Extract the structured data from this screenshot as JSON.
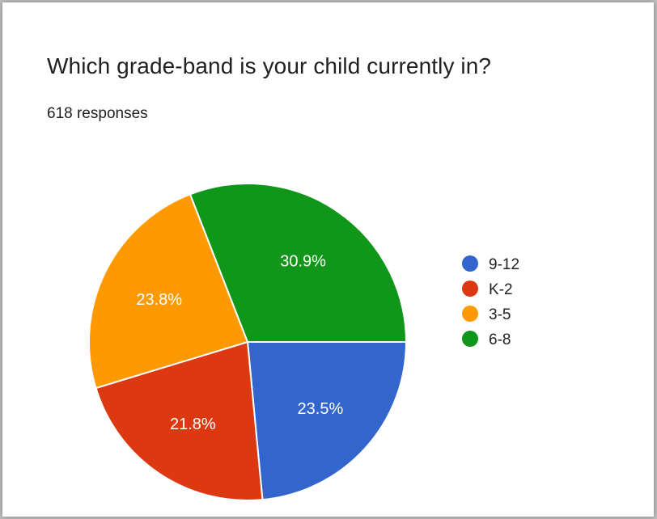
{
  "card": {
    "question": "Which grade-band is your child currently in?",
    "responses": "618 responses"
  },
  "chart_data": {
    "type": "pie",
    "start_angle_deg": 90,
    "direction": "clockwise",
    "legend_position": "right",
    "slices": [
      {
        "label": "9-12",
        "value": 23.5,
        "display": "23.5%",
        "color": "#3366cc"
      },
      {
        "label": "K-2",
        "value": 21.8,
        "display": "21.8%",
        "color": "#dc3912"
      },
      {
        "label": "3-5",
        "value": 23.8,
        "display": "23.8%",
        "color": "#ff9900"
      },
      {
        "label": "6-8",
        "value": 30.9,
        "display": "30.9%",
        "color": "#109618"
      }
    ]
  }
}
